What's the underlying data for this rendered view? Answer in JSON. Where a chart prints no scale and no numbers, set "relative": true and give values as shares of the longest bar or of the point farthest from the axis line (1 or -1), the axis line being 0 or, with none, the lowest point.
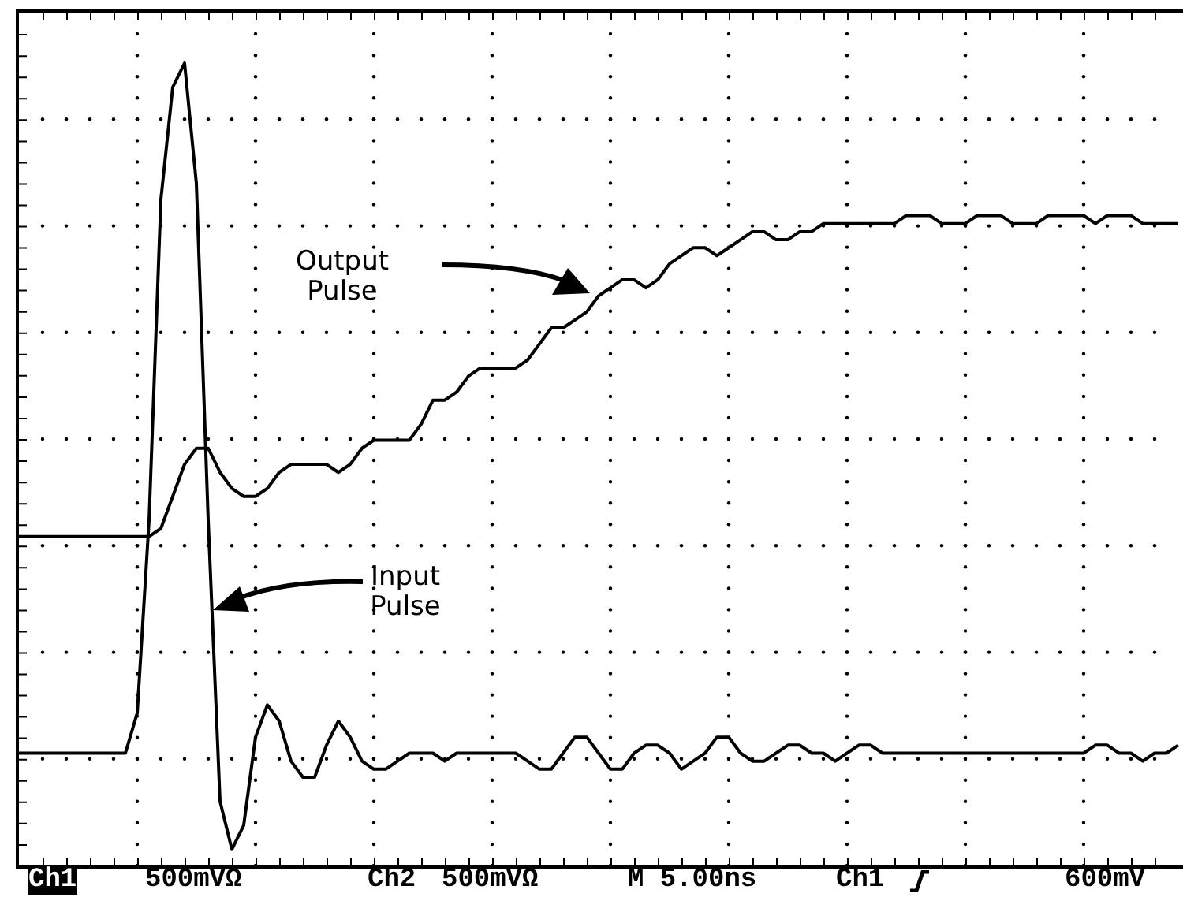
{
  "chart_data": {
    "type": "line",
    "relative": true,
    "legend": false,
    "marker": "none",
    "line_style": "solid",
    "categories": [
      null,
      null,
      null,
      null,
      null,
      null,
      null,
      null,
      null,
      null,
      null,
      null,
      null,
      null,
      null,
      null,
      null,
      null,
      null,
      null,
      null,
      null,
      null,
      null,
      null,
      null,
      null,
      null,
      null,
      null,
      null,
      null,
      null,
      null,
      null,
      null,
      null,
      null,
      null,
      null,
      null,
      null,
      null,
      null,
      null,
      null,
      null,
      null,
      null,
      null,
      null,
      null,
      null,
      null,
      null,
      null,
      null,
      null,
      null,
      null,
      null,
      null,
      null,
      null,
      null,
      null,
      null,
      null,
      null,
      null,
      null,
      null,
      null,
      null,
      null,
      null,
      null,
      null,
      null,
      null,
      null,
      null,
      null,
      null,
      null,
      null,
      null,
      null,
      null,
      null,
      null,
      null,
      null,
      null,
      null,
      null,
      null,
      null,
      null
    ],
    "series": [
      {
        "color": "#000000",
        "values": [
          0.41,
          0.41,
          0.41,
          0.41,
          0.41,
          0.41,
          0.41,
          0.41,
          0.41,
          0.41,
          0.41,
          0.41,
          0.42,
          0.46,
          0.5,
          0.52,
          0.52,
          0.49,
          0.47,
          0.46,
          0.46,
          0.47,
          0.49,
          0.5,
          0.5,
          0.5,
          0.5,
          0.49,
          0.5,
          0.52,
          0.53,
          0.53,
          0.53,
          0.53,
          0.55,
          0.58,
          0.58,
          0.59,
          0.61,
          0.62,
          0.62,
          0.62,
          0.62,
          0.63,
          0.65,
          0.67,
          0.67,
          0.68,
          0.69,
          0.71,
          0.72,
          0.73,
          0.73,
          0.72,
          0.73,
          0.75,
          0.76,
          0.77,
          0.77,
          0.76,
          0.77,
          0.78,
          0.79,
          0.79,
          0.78,
          0.78,
          0.79,
          0.79,
          0.8,
          0.8,
          0.8,
          0.8,
          0.8,
          0.8,
          0.8,
          0.81,
          0.81,
          0.81,
          0.8,
          0.8,
          0.8,
          0.81,
          0.81,
          0.81,
          0.8,
          0.8,
          0.8,
          0.81,
          0.81,
          0.81,
          0.81,
          0.8,
          0.81,
          0.81,
          0.81,
          0.8,
          0.8,
          0.8,
          0.8
        ]
      },
      {
        "color": "#000000",
        "values": [
          0.14,
          0.14,
          0.14,
          0.14,
          0.14,
          0.14,
          0.14,
          0.14,
          0.14,
          0.14,
          0.19,
          0.43,
          0.83,
          0.97,
          1.0,
          0.85,
          0.43,
          0.08,
          0.02,
          0.05,
          0.16,
          0.2,
          0.18,
          0.13,
          0.11,
          0.11,
          0.15,
          0.18,
          0.16,
          0.13,
          0.12,
          0.12,
          0.13,
          0.14,
          0.14,
          0.14,
          0.13,
          0.14,
          0.14,
          0.14,
          0.14,
          0.14,
          0.14,
          0.13,
          0.12,
          0.12,
          0.14,
          0.16,
          0.16,
          0.14,
          0.12,
          0.12,
          0.14,
          0.15,
          0.15,
          0.14,
          0.12,
          0.13,
          0.14,
          0.16,
          0.16,
          0.14,
          0.13,
          0.13,
          0.14,
          0.15,
          0.15,
          0.14,
          0.14,
          0.13,
          0.14,
          0.15,
          0.15,
          0.14,
          0.14,
          0.14,
          0.14,
          0.14,
          0.14,
          0.14,
          0.14,
          0.14,
          0.14,
          0.14,
          0.14,
          0.14,
          0.14,
          0.14,
          0.14,
          0.14,
          0.14,
          0.15,
          0.15,
          0.14,
          0.14,
          0.13,
          0.14,
          0.14,
          0.15
        ]
      }
    ],
    "annotations": [
      "Output Pulse",
      "Input Pulse",
      "Ch1",
      "500mVΩ",
      "Ch2",
      "500mVΩ",
      "M 5.00ns",
      "Ch1",
      "600mV"
    ]
  }
}
